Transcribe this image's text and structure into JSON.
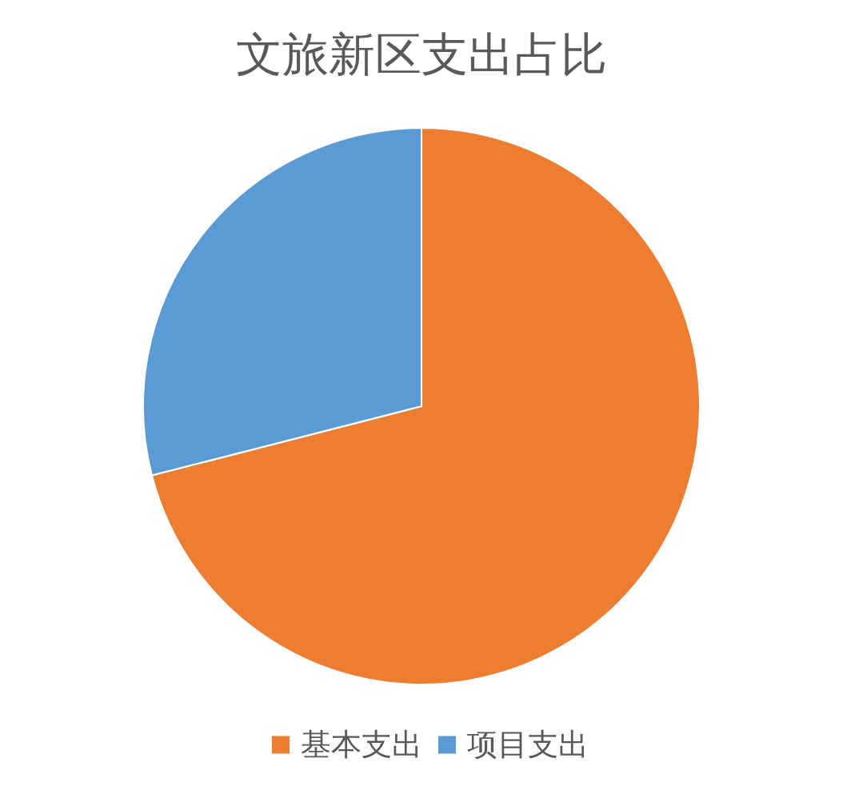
{
  "chart_data": {
    "type": "pie",
    "title": "文旅新区支出占比",
    "categories": [
      "基本支出",
      "项目支出"
    ],
    "values": [
      71,
      29
    ],
    "colors": [
      "#ed7d31",
      "#5b9bd5"
    ],
    "legend": "bottom"
  }
}
